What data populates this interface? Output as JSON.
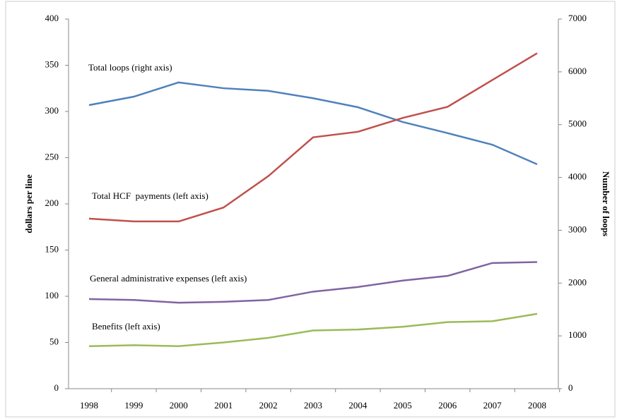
{
  "chart_data": {
    "type": "line",
    "categories": [
      "1998",
      "1999",
      "2000",
      "2001",
      "2002",
      "2003",
      "2004",
      "2005",
      "2006",
      "2007",
      "2008"
    ],
    "ylabel": "dollars per line",
    "y2label": "Number of loops",
    "ylim": [
      0,
      400
    ],
    "yticks": [
      0,
      50,
      100,
      150,
      200,
      250,
      300,
      350,
      400
    ],
    "y2lim": [
      0,
      7000
    ],
    "y2ticks": [
      0,
      1000,
      2000,
      3000,
      4000,
      5000,
      6000,
      7000
    ],
    "series": [
      {
        "name": "Total loops (right axis)",
        "color": "#4f81bd",
        "axis": "y2",
        "values": [
          5370,
          5530,
          5800,
          5690,
          5640,
          5500,
          5330,
          5050,
          4840,
          4620,
          4250
        ]
      },
      {
        "name": "Total HCF  payments (left axis)",
        "color": "#c0504d",
        "values": [
          184,
          181,
          181,
          196,
          230,
          272,
          278,
          293,
          305,
          334,
          363
        ]
      },
      {
        "name": "General administrative expenses (left axis)",
        "color": "#8064a2",
        "values": [
          97,
          96,
          93,
          94,
          96,
          105,
          110,
          117,
          122,
          136,
          137
        ]
      },
      {
        "name": "Benefits (left axis)",
        "color": "#9bbb59",
        "values": [
          46,
          47,
          46,
          50,
          55,
          63,
          64,
          67,
          72,
          73,
          81
        ]
      }
    ]
  }
}
